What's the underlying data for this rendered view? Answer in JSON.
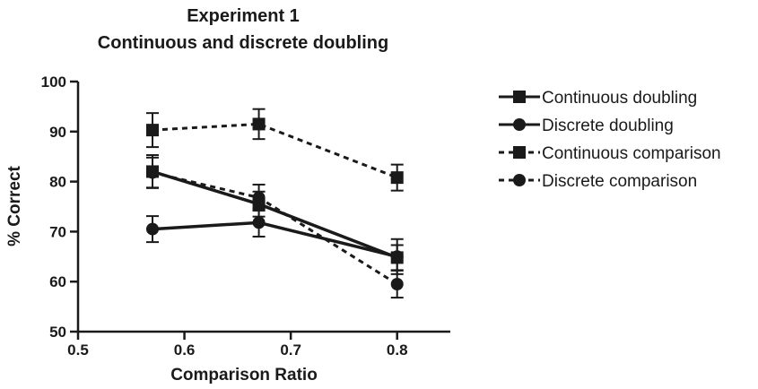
{
  "chart_data": {
    "type": "line",
    "title": "Experiment 1",
    "subtitle": "Continuous and discrete doubling",
    "xlabel": "Comparison Ratio",
    "ylabel": "% Correct",
    "xlim": [
      0.5,
      0.85
    ],
    "ylim": [
      50,
      100
    ],
    "xticks": [
      0.5,
      0.6,
      0.7,
      0.8
    ],
    "yticks": [
      50,
      60,
      70,
      80,
      90,
      100
    ],
    "x": [
      0.57,
      0.67,
      0.8
    ],
    "legend_position": "right",
    "grid": false,
    "series": [
      {
        "name": "Continuous doubling",
        "marker": "square",
        "line": "solid",
        "values": [
          82.0,
          75.5,
          64.8
        ],
        "errors": [
          3.3,
          2.5,
          2.5
        ]
      },
      {
        "name": "Discrete doubling",
        "marker": "circle",
        "line": "solid",
        "values": [
          70.5,
          71.8,
          65.0
        ],
        "errors": [
          2.6,
          2.8,
          3.5
        ]
      },
      {
        "name": "Continuous comparison",
        "marker": "square",
        "line": "dashed",
        "values": [
          90.3,
          91.5,
          80.8
        ],
        "errors": [
          3.4,
          3.0,
          2.6
        ]
      },
      {
        "name": "Discrete comparison",
        "marker": "circle",
        "line": "dashed",
        "values": [
          81.8,
          76.8,
          59.5
        ],
        "errors": [
          3.0,
          2.6,
          2.7
        ]
      }
    ],
    "colors": {
      "ink": "#1a1a1a"
    }
  }
}
